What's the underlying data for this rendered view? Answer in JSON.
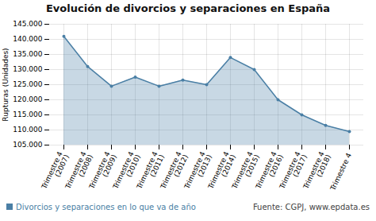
{
  "chart_data": {
    "type": "area",
    "title": "Evolución de divorcios y separaciones en España",
    "ylabel": "Rupturas (Unidades)",
    "source": "Fuente: CGPJ, www.epdata.es",
    "categories": [
      "Trimestre 4\n(2007)",
      "Trimestre 4\n(2008)",
      "Trimestre 4\n(2009)",
      "Trimestre 4\n(2010)",
      "Trimestre 4\n(2011)",
      "Trimestre 4\n(2012)",
      "Trimestre 4\n(2013)",
      "Trimestre 4\n(2014)",
      "Trimestre 4\n(2015)",
      "Trimestre 4\n(2016)",
      "Trimestre 4\n(2017)",
      "Trimestre 4\n(2018)",
      "Trimestre 4"
    ],
    "series": [
      {
        "name": "Divorcios y separaciones en lo que va de año",
        "color": "#4a7fa5",
        "values": [
          141000,
          131000,
          124500,
          127500,
          124500,
          126500,
          125000,
          134000,
          130000,
          120000,
          115000,
          111500,
          109500
        ]
      }
    ],
    "ylim": [
      105000,
      145000
    ],
    "yticks": [
      {
        "value": 105000,
        "label": "105.000"
      },
      {
        "value": 110000,
        "label": "110.000"
      },
      {
        "value": 115000,
        "label": "115.000"
      },
      {
        "value": 120000,
        "label": "120.000"
      },
      {
        "value": 125000,
        "label": "125.000"
      },
      {
        "value": 130000,
        "label": "130.000"
      },
      {
        "value": 135000,
        "label": "135.000"
      },
      {
        "value": 140000,
        "label": "140.000"
      },
      {
        "value": 145000,
        "label": "145.000"
      }
    ],
    "grid": true,
    "marker": "circle",
    "legend": "bottom"
  }
}
